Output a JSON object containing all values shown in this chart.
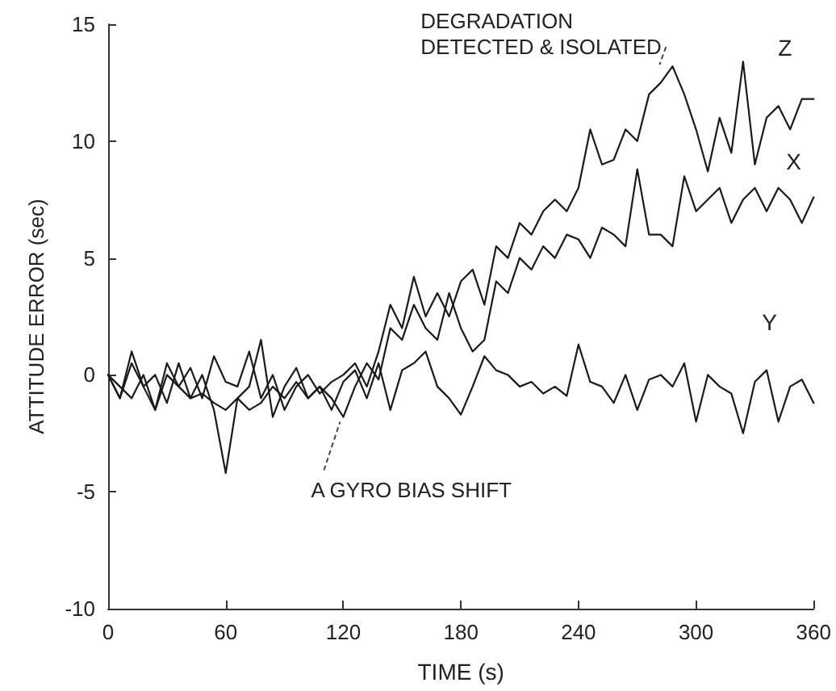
{
  "chart_data": {
    "type": "line",
    "xlabel": "TIME (s)",
    "ylabel": "ATTITUDE ERROR (sec)",
    "x": [
      0,
      6,
      12,
      18,
      24,
      30,
      36,
      42,
      48,
      54,
      60,
      66,
      72,
      78,
      84,
      90,
      96,
      102,
      108,
      114,
      120,
      126,
      132,
      138,
      144,
      150,
      156,
      162,
      168,
      174,
      180,
      186,
      192,
      198,
      204,
      210,
      216,
      222,
      228,
      234,
      240,
      246,
      252,
      258,
      264,
      270,
      276,
      282,
      288,
      294,
      300,
      306,
      312,
      318,
      324,
      330,
      336,
      342,
      348,
      354,
      360
    ],
    "series": [
      {
        "name": "Z",
        "color": "#1a1a1a",
        "values": [
          0,
          -0.5,
          -1,
          0,
          -1.5,
          0.5,
          -0.5,
          0.3,
          -1,
          0.8,
          -0.3,
          -0.5,
          1,
          -1,
          0,
          -1.5,
          -0.5,
          0,
          -0.8,
          -0.3,
          0,
          0.5,
          -0.5,
          1,
          3,
          2,
          4.2,
          2.5,
          3.5,
          2.5,
          4,
          4.5,
          3,
          5.5,
          5,
          6.5,
          6,
          7,
          7.5,
          7,
          8,
          10.5,
          9,
          9.2,
          10.5,
          10,
          12,
          12.5,
          13.2,
          12,
          10.5,
          8.7,
          11,
          9.5,
          13.4,
          9,
          11,
          11.5,
          10.5,
          11.8,
          11.8
        ]
      },
      {
        "name": "X",
        "color": "#1a1a1a",
        "values": [
          0,
          -1,
          0.5,
          -0.5,
          -1.5,
          0,
          -0.5,
          -1,
          -0.8,
          -1.2,
          -1.5,
          -1,
          -1.5,
          -1.2,
          -0.5,
          -1,
          -0.3,
          -1,
          -0.5,
          -1,
          -1.8,
          -0.5,
          0.5,
          -0.2,
          2,
          1.5,
          3,
          2,
          1.5,
          3.5,
          2,
          1,
          1.5,
          4,
          3.5,
          5,
          4.5,
          5.5,
          5,
          6,
          5.8,
          5,
          6.3,
          6,
          5.5,
          8.8,
          6,
          6,
          5.5,
          8.5,
          7,
          7.5,
          8,
          6.5,
          7.5,
          8,
          7,
          8,
          7.5,
          6.5,
          7.6
        ]
      },
      {
        "name": "Y",
        "color": "#1a1a1a",
        "values": [
          0,
          -1,
          1,
          -0.5,
          0,
          -1.2,
          0.5,
          -1,
          0,
          -1.5,
          -4.2,
          -1,
          -0.5,
          1.5,
          -1.8,
          -0.5,
          0.3,
          -1,
          -0.5,
          -1.5,
          -0.3,
          0.2,
          -1,
          0.5,
          -1.5,
          0.2,
          0.5,
          1,
          -0.5,
          -1,
          -1.7,
          -0.5,
          0.8,
          0.2,
          0,
          -0.5,
          -0.3,
          -0.8,
          -0.5,
          -0.9,
          1.3,
          -0.3,
          -0.5,
          -1.2,
          0,
          -1.5,
          -0.2,
          0,
          -0.5,
          0.5,
          -2,
          0,
          -0.5,
          -0.8,
          -2.5,
          -0.3,
          0.2,
          -2,
          -0.5,
          -0.2,
          -1.2
        ]
      }
    ],
    "xlim": [
      0,
      360
    ],
    "xticks": [
      0,
      60,
      120,
      180,
      240,
      300,
      360
    ],
    "ylim": [
      -10,
      15
    ],
    "yticks": [
      -10,
      -5,
      0,
      5,
      10,
      15
    ],
    "grid": false,
    "legend": false,
    "marker": "none",
    "line_style": "solid",
    "annotations": [
      {
        "text": "DEGRADATION\nDETECTED & ISOLATED",
        "x": 283,
        "y": 13.2
      },
      {
        "text": "A GYRO BIAS SHIFT",
        "x": 120,
        "y": -1.8
      }
    ]
  }
}
